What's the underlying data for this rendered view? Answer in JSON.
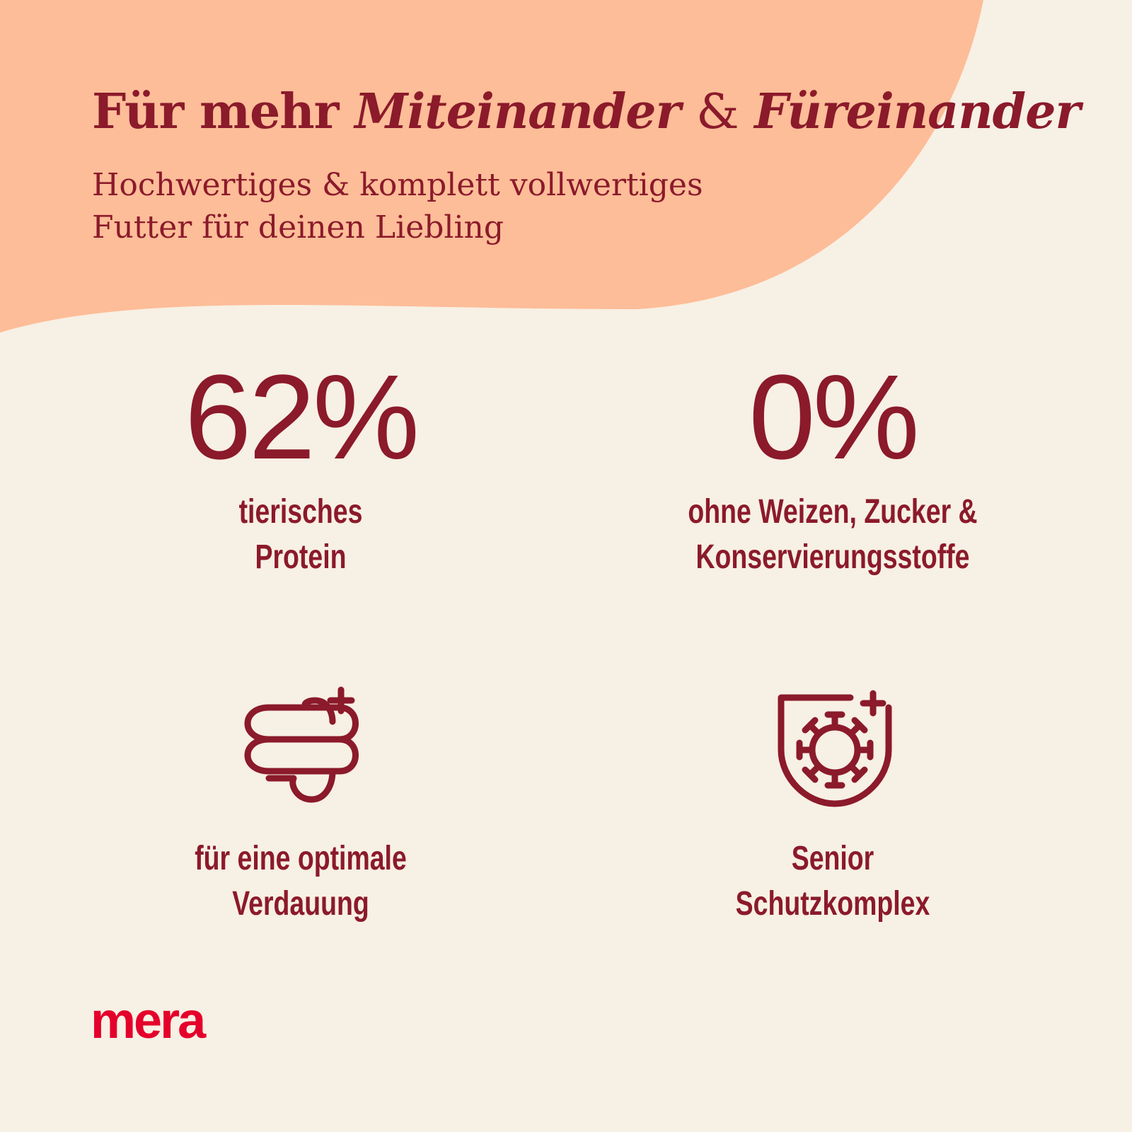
{
  "header": {
    "title": {
      "plain": "Für mehr",
      "emph1": "Miteinander",
      "amp": "&",
      "emph2": "Füreinander"
    },
    "subtitle": [
      "Hochwertiges & komplett vollwertiges",
      "Futter für deinen Liebling"
    ]
  },
  "features": [
    {
      "stat": "62%",
      "lines": [
        "tierisches",
        "Protein"
      ]
    },
    {
      "stat": "0%",
      "lines": [
        "ohne Weizen, Zucker &",
        "Konservierungsstoffe"
      ]
    },
    {
      "lines": [
        "für eine optimale",
        "Verdauung"
      ]
    },
    {
      "lines": [
        "Senior",
        "Schutzkomplex"
      ]
    }
  ],
  "logo": "mera"
}
